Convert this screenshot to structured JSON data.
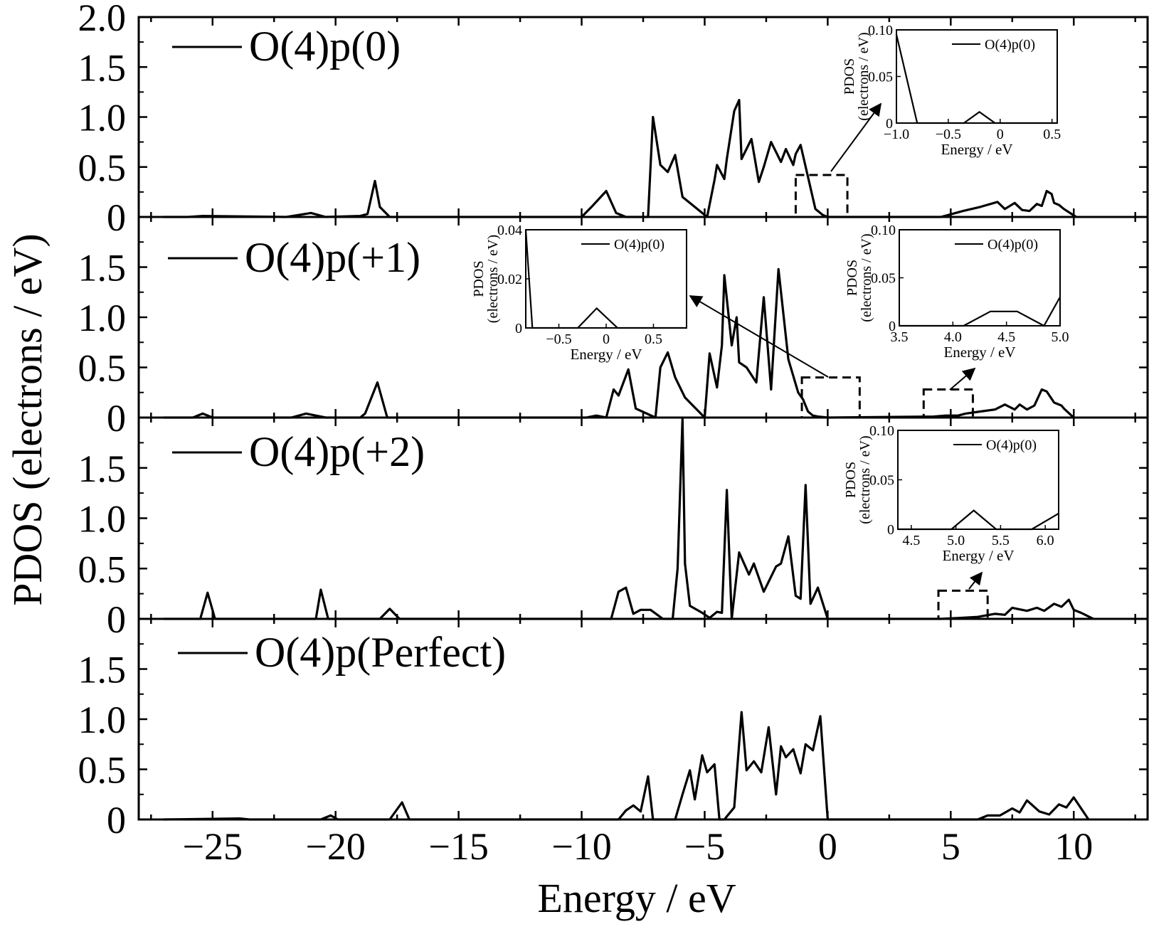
{
  "chart_data": {
    "type": "line",
    "xlabel": "Energy / eV",
    "ylabel": "PDOS (electrons / eV)",
    "xlim": [
      -28,
      13
    ],
    "x_ticks": [
      -25,
      -20,
      -15,
      -10,
      -5,
      0,
      5,
      10
    ],
    "x_tick_labels": [
      "−25",
      "−20",
      "−15",
      "−10",
      "−5",
      "0",
      "5",
      "10"
    ],
    "grid": false,
    "panels": [
      {
        "legend": "O(4)p(0)",
        "ylim": [
          0,
          2.0
        ],
        "y_ticks": [
          0,
          0.5,
          1.0,
          1.5,
          2.0
        ],
        "y_tick_labels": [
          "0",
          "0.5",
          "1.0",
          "1.5",
          "2.0"
        ],
        "x": [
          -27,
          -26,
          -25.4,
          -22,
          -21,
          -20.4,
          -19,
          -18.7,
          -18.4,
          -18.2,
          -17.8,
          -10,
          -9.6,
          -9.0,
          -8.6,
          -8.2,
          -7.3,
          -7.1,
          -6.8,
          -6.5,
          -6.2,
          -5.9,
          -5.5,
          -4.9,
          -4.6,
          -4.5,
          -4.2,
          -4.1,
          -3.8,
          -3.6,
          -3.5,
          -3.1,
          -2.8,
          -2.6,
          -2.3,
          -1.9,
          -1.7,
          -1.4,
          -1.3,
          -1.1,
          -0.5,
          -0.2,
          0.0,
          0.8,
          4.6,
          5.2,
          5.5,
          6.2,
          6.9,
          7.2,
          7.6,
          7.9,
          8.2,
          8.5,
          8.7,
          8.9,
          9.1,
          9.2,
          9.4,
          9.6,
          10.1
        ],
        "y": [
          0,
          0,
          0.01,
          0,
          0.04,
          0,
          0.01,
          0.03,
          0.36,
          0.1,
          0,
          0,
          0.1,
          0.26,
          0.04,
          0,
          0,
          1.0,
          0.52,
          0.45,
          0.62,
          0.2,
          0.12,
          0,
          0.37,
          0.52,
          0.38,
          0.58,
          1.06,
          1.17,
          0.58,
          0.78,
          0.35,
          0.5,
          0.75,
          0.55,
          0.68,
          0.52,
          0.63,
          0.72,
          0.08,
          0.02,
          0,
          0,
          0,
          0.04,
          0.06,
          0.1,
          0.15,
          0.08,
          0.14,
          0.07,
          0.06,
          0.13,
          0.11,
          0.26,
          0.23,
          0.14,
          0.12,
          0.08,
          0
        ],
        "insets": [
          {
            "xlim": [
              -1.0,
              0.55
            ],
            "ylim": [
              0,
              0.1
            ],
            "x_tick_labels": [
              "−1.0",
              "−0.5",
              "0",
              "0.5"
            ],
            "x_ticks": [
              -1.0,
              -0.5,
              0,
              0.5
            ],
            "y_tick_labels": [
              "0",
              "0.05",
              "0.10"
            ],
            "y_ticks": [
              0,
              0.05,
              0.1
            ],
            "xlabel": "Energy / eV",
            "ylabel": "PDOS",
            "ylabel2": "(electrons / eV)",
            "legend": "O(4)p(0)",
            "x": [
              -1.0,
              -0.8,
              -0.35,
              -0.2,
              -0.05,
              0.55
            ],
            "y": [
              0.095,
              0,
              0,
              0.012,
              0,
              0
            ]
          }
        ]
      },
      {
        "legend": "O(4)p(+1)",
        "ylim": [
          0,
          2.0
        ],
        "y_ticks": [
          0,
          0.5,
          1.0,
          1.5
        ],
        "y_tick_labels": [
          "0",
          "0.5",
          "1.0",
          "1.5"
        ],
        "x": [
          -27,
          -25.8,
          -25.4,
          -25.0,
          -21.8,
          -21.2,
          -20.4,
          -19.0,
          -18.8,
          -18.3,
          -17.9,
          -9.8,
          -9.4,
          -9.0,
          -8.7,
          -8.5,
          -8.1,
          -7.8,
          -7.0,
          -6.8,
          -6.5,
          -6.2,
          -5.8,
          -5.6,
          -5.0,
          -4.8,
          -4.5,
          -4.3,
          -4.2,
          -3.9,
          -3.7,
          -3.6,
          -3.3,
          -2.9,
          -2.6,
          -2.3,
          -2.0,
          -1.6,
          -1.2,
          -1.0,
          -0.8,
          -0.6,
          -0.4,
          0.0,
          4.3,
          4.8,
          5.3,
          5.6,
          6.2,
          6.8,
          7.2,
          7.6,
          7.8,
          8.1,
          8.4,
          8.7,
          8.9,
          9.2,
          9.5,
          9.6,
          10.0
        ],
        "y": [
          0,
          0,
          0.04,
          0,
          0,
          0.04,
          0,
          0,
          0.04,
          0.35,
          0,
          0,
          0.02,
          0,
          0.28,
          0.22,
          0.48,
          0.09,
          0,
          0.5,
          0.65,
          0.4,
          0.2,
          0.15,
          0,
          0.64,
          0.3,
          0.72,
          1.42,
          0.72,
          1.0,
          0.55,
          0.5,
          0.35,
          1.2,
          0.28,
          1.48,
          0.58,
          0.25,
          0.18,
          0.06,
          0.02,
          0.01,
          0,
          0.01,
          0.02,
          0.02,
          0.04,
          0.06,
          0.08,
          0.13,
          0.08,
          0.13,
          0.08,
          0.12,
          0.28,
          0.26,
          0.15,
          0.12,
          0.09,
          0
        ],
        "insets": [
          {
            "xlim": [
              -0.85,
              0.85
            ],
            "ylim": [
              0,
              0.04
            ],
            "x_tick_labels": [
              "−0.5",
              "0",
              "0.5"
            ],
            "x_ticks": [
              -0.5,
              0,
              0.5
            ],
            "y_tick_labels": [
              "0",
              "0.02",
              "0.04"
            ],
            "y_ticks": [
              0,
              0.02,
              0.04
            ],
            "xlabel": "Energy / eV",
            "ylabel": "PDOS",
            "ylabel2": "(electrons / eV)",
            "legend": "O(4)p(0)",
            "x": [
              -0.85,
              -0.78,
              -0.3,
              -0.1,
              0.12,
              0.85
            ],
            "y": [
              0.04,
              0,
              0,
              0.008,
              0,
              0
            ]
          },
          {
            "xlim": [
              3.5,
              5.0
            ],
            "ylim": [
              0,
              0.1
            ],
            "x_tick_labels": [
              "3.5",
              "4.0",
              "4.5",
              "5.0"
            ],
            "x_ticks": [
              3.5,
              4.0,
              4.5,
              5.0
            ],
            "y_tick_labels": [
              "0",
              "0.05",
              "0.10"
            ],
            "y_ticks": [
              0,
              0.05,
              0.1
            ],
            "xlabel": "Energy / eV",
            "ylabel": "PDOS",
            "ylabel2": "(electrons / eV)",
            "legend": "O(4)p(0)",
            "x": [
              3.5,
              4.1,
              4.35,
              4.6,
              4.85,
              5.0
            ],
            "y": [
              0,
              0,
              0.015,
              0.015,
              0,
              0.03
            ]
          }
        ]
      },
      {
        "legend": "O(4)p(+2)",
        "ylim": [
          0,
          2.0
        ],
        "y_ticks": [
          0,
          0.5,
          1.0,
          1.5
        ],
        "y_tick_labels": [
          "0",
          "0.5",
          "1.0",
          "1.5"
        ],
        "x": [
          -27,
          -25.5,
          -25.2,
          -24.9,
          -20.8,
          -20.6,
          -20.3,
          -18.2,
          -17.8,
          -17.4,
          -8.8,
          -8.5,
          -8.2,
          -7.9,
          -7.6,
          -7.2,
          -6.7,
          -6.3,
          -6.1,
          -5.9,
          -5.8,
          -5.6,
          -5.1,
          -4.8,
          -4.5,
          -4.3,
          -4.1,
          -3.9,
          -3.6,
          -3.2,
          -3.0,
          -2.6,
          -2.1,
          -1.9,
          -1.6,
          -1.3,
          -1.1,
          -0.9,
          -0.7,
          -0.4,
          0.0,
          4.6,
          5.4,
          6.1,
          6.8,
          7.2,
          7.5,
          7.7,
          8.1,
          8.5,
          8.8,
          9.2,
          9.5,
          9.8,
          10.0,
          10.3,
          10.8
        ],
        "y": [
          0,
          0,
          0.26,
          0,
          0,
          0.29,
          0,
          0,
          0.1,
          0,
          0,
          0.27,
          0.31,
          0.05,
          0.09,
          0.09,
          0,
          0,
          0.5,
          1.99,
          0.55,
          0.13,
          0.06,
          0.01,
          0.07,
          0.06,
          1.28,
          0,
          0.66,
          0.44,
          0.55,
          0.27,
          0.52,
          0.55,
          0.82,
          0.23,
          0.2,
          1.33,
          0.15,
          0.31,
          0,
          0,
          0.01,
          0.02,
          0.05,
          0.04,
          0.11,
          0.1,
          0.08,
          0.11,
          0.08,
          0.15,
          0.12,
          0.19,
          0.09,
          0.06,
          0
        ],
        "insets": [
          {
            "xlim": [
              4.35,
              6.15
            ],
            "ylim": [
              0,
              0.1
            ],
            "x_tick_labels": [
              "4.5",
              "5.0",
              "5.5",
              "6.0"
            ],
            "x_ticks": [
              4.5,
              5.0,
              5.5,
              6.0
            ],
            "y_tick_labels": [
              "0",
              "0.05",
              "0.10"
            ],
            "y_ticks": [
              0,
              0.05,
              0.1
            ],
            "xlabel": "Energy / eV",
            "ylabel": "PDOS",
            "ylabel2": "(electrons / eV)",
            "legend": "O(4)p(0)",
            "x": [
              4.35,
              4.95,
              5.2,
              5.45,
              5.85,
              6.15
            ],
            "y": [
              0,
              0,
              0.019,
              0,
              0,
              0.016
            ]
          }
        ]
      },
      {
        "legend": "O(4)p(Perfect)",
        "ylim": [
          0,
          2.0
        ],
        "y_ticks": [
          0,
          0.5,
          1.0,
          1.5
        ],
        "y_tick_labels": [
          "0",
          "0.5",
          "1.0",
          "1.5"
        ],
        "x": [
          -27,
          -23.9,
          -23.5,
          -20.6,
          -20.2,
          -19.9,
          -18.5,
          -17.8,
          -17.3,
          -17.0,
          -8.5,
          -8.2,
          -7.9,
          -7.6,
          -7.3,
          -7.1,
          -6.8,
          -6.2,
          -5.9,
          -5.6,
          -5.4,
          -5.1,
          -4.9,
          -4.6,
          -4.4,
          -4.2,
          -3.8,
          -3.5,
          -3.3,
          -3.0,
          -2.7,
          -2.4,
          -2.1,
          -1.9,
          -1.7,
          -1.4,
          -1.1,
          -0.9,
          -0.6,
          -0.3,
          0.0,
          6.1,
          6.5,
          7.0,
          7.5,
          7.8,
          8.1,
          8.6,
          9.0,
          9.4,
          9.7,
          10.0,
          10.6
        ],
        "y": [
          0,
          0.01,
          0,
          0,
          0.04,
          0,
          0,
          0,
          0.17,
          0,
          0,
          0.09,
          0.14,
          0.08,
          0.43,
          0,
          0,
          0,
          0.25,
          0.49,
          0.2,
          0.64,
          0.47,
          0.55,
          0,
          0,
          0.12,
          1.07,
          0.49,
          0.58,
          0.47,
          0.92,
          0.25,
          0.73,
          0.62,
          0.7,
          0.46,
          0.75,
          0.69,
          1.03,
          0,
          0,
          0.04,
          0.04,
          0.11,
          0.07,
          0.19,
          0.08,
          0.05,
          0.15,
          0.12,
          0.22,
          0
        ],
        "insets": []
      }
    ]
  }
}
